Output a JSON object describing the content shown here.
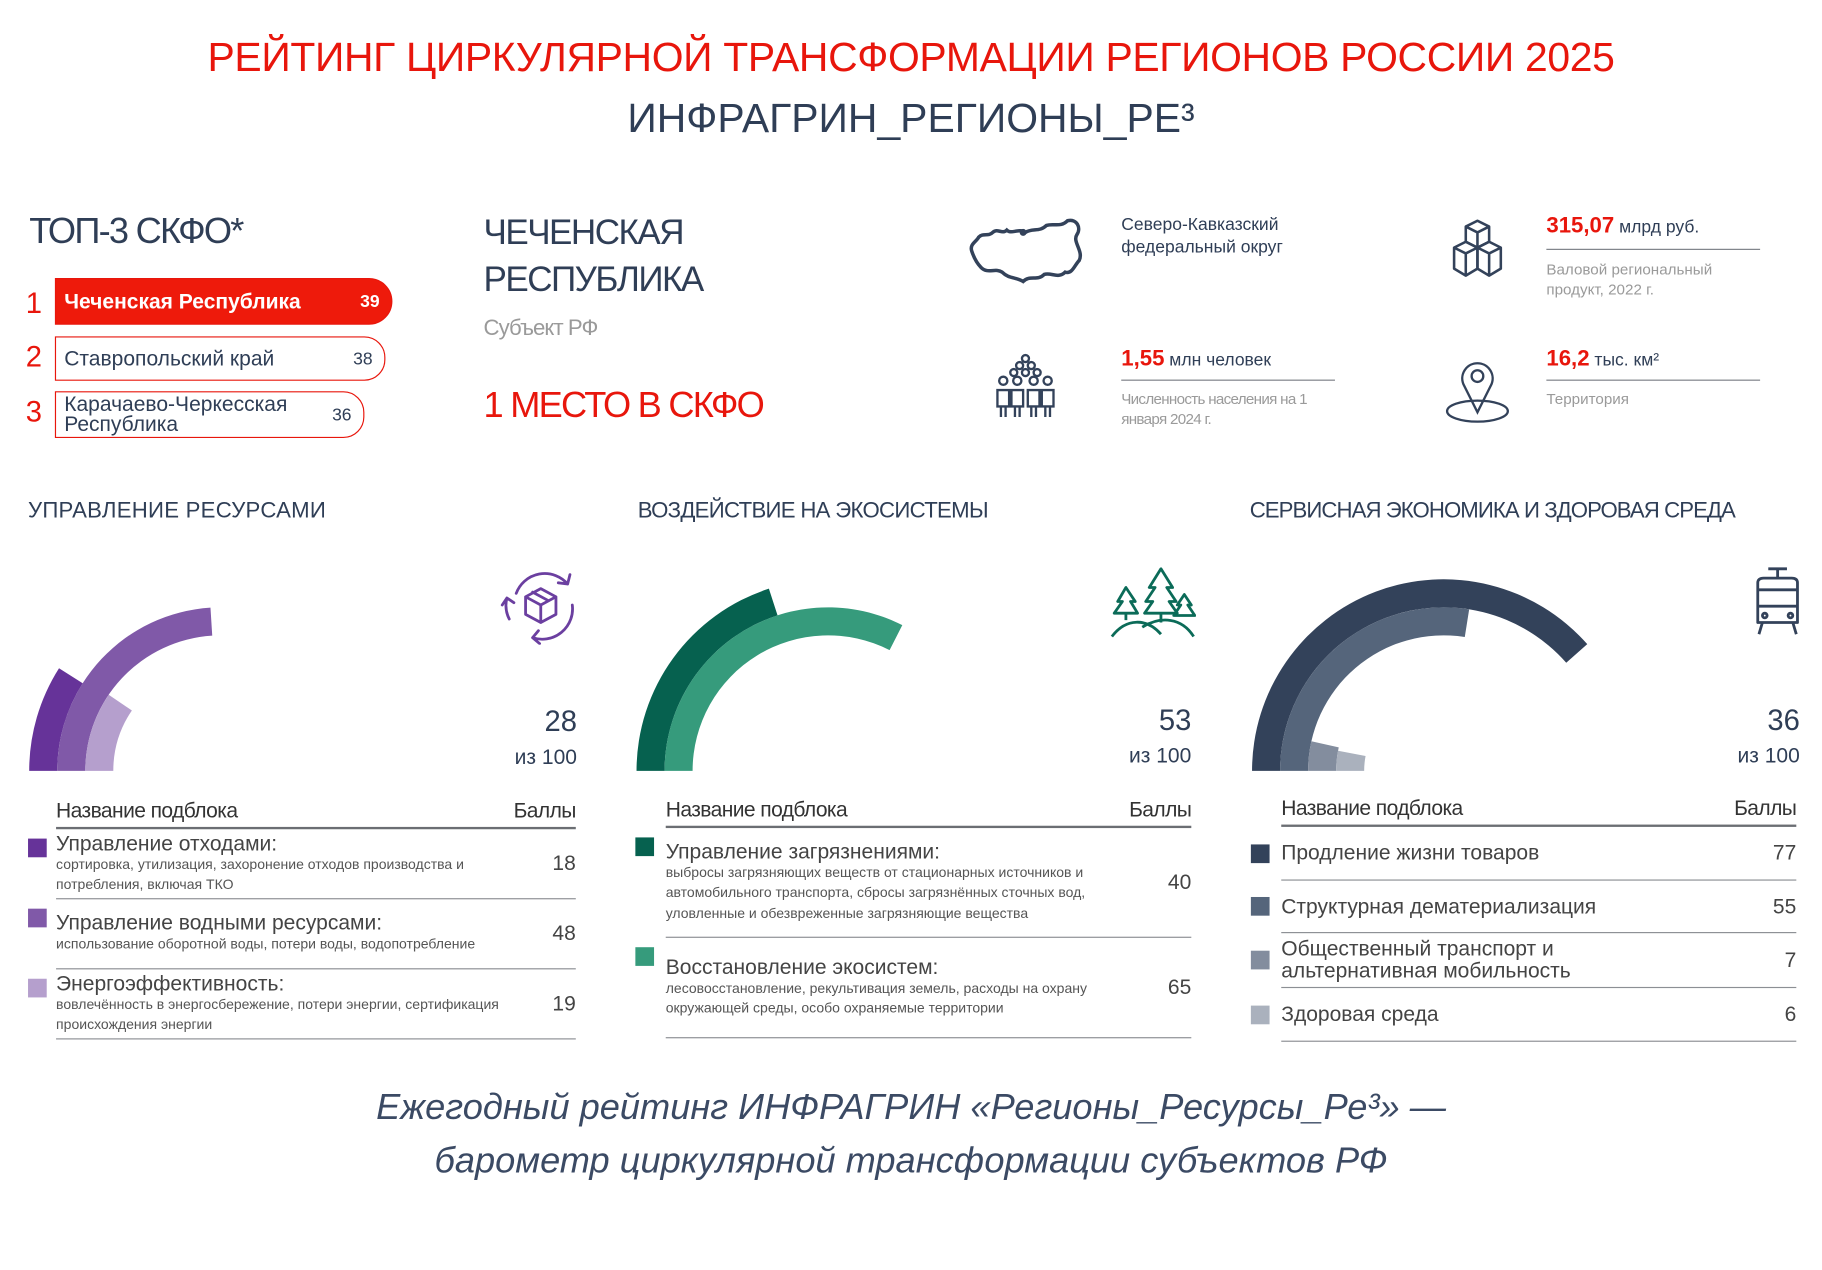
{
  "header": {
    "title": "РЕЙТИНГ ЦИРКУЛЯРНОЙ ТРАНСФОРМАЦИИ РЕГИОНОВ РОССИИ 2025",
    "subtitle": "ИНФРАГРИН_РЕГИОНЫ_РЕ³"
  },
  "top3": {
    "title": "ТОП-3 СКФО*",
    "items": [
      {
        "rank": "1",
        "name": "Чеченская Республика",
        "score": "39"
      },
      {
        "rank": "2",
        "name": "Ставропольский край",
        "score": "38"
      },
      {
        "rank": "3",
        "name": "Карачаево-Черкесская Республика",
        "score": "36"
      }
    ]
  },
  "region": {
    "name": "ЧЕЧЕНСКАЯ РЕСПУБЛИКА",
    "type": "Субъект РФ",
    "place": "1 МЕСТО В СКФО"
  },
  "facts": {
    "district": "Северо-Кавказский федеральный округ",
    "grp_value": "315,07",
    "grp_unit": "млрд руб.",
    "grp_label": "Валовой региональный продукт, 2022 г.",
    "population_value": "1,55",
    "population_unit": "млн человек",
    "population_label": "Численность населения на 1 января 2024 г.",
    "area_value": "16,2",
    "area_unit": "тыс. км²",
    "area_label": "Территория"
  },
  "icons": [
    "russia-map-icon",
    "cubes-icon",
    "people-icon",
    "map-pin-icon",
    "recycle-box-icon",
    "trees-icon",
    "tram-icon"
  ],
  "chart_data": [
    {
      "type": "radial-bar",
      "title": "УПРАВЛЕНИЕ РЕСУРСАМИ",
      "score": "28",
      "score_suffix": "из 100",
      "ylim": [
        0,
        100
      ],
      "col_name": "Название подблока",
      "col_score": "Баллы",
      "categories": [
        "Управление отходами:",
        "Управление водными ресурсами:",
        "Энергоэффективность:"
      ],
      "descriptions": [
        "сортировка, утилизация, захоронение отходов производства и потребления, включая ТКО",
        "использование оборотной воды, потери воды, водопотребление",
        "вовлечённость в энергосбережение, потери энергии, сертификация происхождения энергии"
      ],
      "values": [
        18,
        48,
        19
      ],
      "colors": [
        "#663399",
        "#8059a8",
        "#b59fcd"
      ]
    },
    {
      "type": "radial-bar",
      "title": "ВОЗДЕЙСТВИЕ НА ЭКОСИСТЕМЫ",
      "score": "53",
      "score_suffix": "из 100",
      "ylim": [
        0,
        100
      ],
      "col_name": "Название подблока",
      "col_score": "Баллы",
      "categories": [
        "Управление загрязнениями:",
        "Восстановление экосистем:"
      ],
      "descriptions": [
        "выбросы загрязняющих веществ от стационарных источников и автомобильного транспорта, сбросы загрязнённых сточных вод, уловленные и обезвреженные загрязняющие вещества",
        "лесовосстановление, рекультивация земель, расходы на охрану окружающей среды, особо охраняемые территории"
      ],
      "values": [
        40,
        65
      ],
      "colors": [
        "#06614f",
        "#369b7c"
      ]
    },
    {
      "type": "radial-bar",
      "title": "СЕРВИСНАЯ ЭКОНОМИКА И ЗДОРОВАЯ СРЕДА",
      "score": "36",
      "score_suffix": "из 100",
      "ylim": [
        0,
        100
      ],
      "col_name": "Название подблока",
      "col_score": "Баллы",
      "categories": [
        "Продление жизни товаров",
        "Структурная дематериализация",
        "Общественный транспорт и альтернативная мобильность",
        "Здоровая среда"
      ],
      "descriptions": [
        "",
        "",
        "",
        ""
      ],
      "values": [
        77,
        55,
        7,
        6
      ],
      "colors": [
        "#33425a",
        "#55657b",
        "#838d9e",
        "#aab1bd"
      ]
    }
  ],
  "footer": {
    "line1": "Ежегодный рейтинг ИНФРАГРИН «Регионы_Ресурсы_Ре³» —",
    "line2": "барометр циркулярной трансформации субъектов РФ"
  }
}
